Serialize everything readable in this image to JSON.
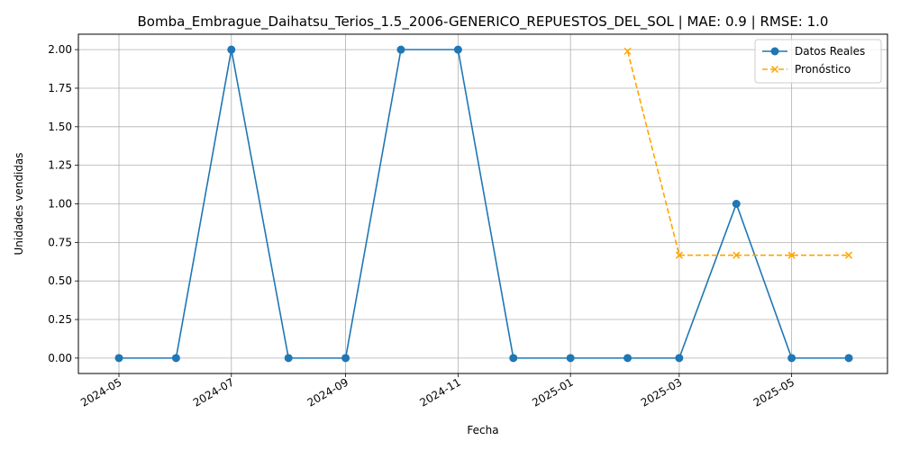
{
  "chart_data": {
    "type": "line",
    "title": "Bomba_Embrague_Daihatsu_Terios_1.5_2006-GENERICO_REPUESTOS_DEL_SOL | MAE: 0.9 | RMSE: 1.0",
    "xlabel": "Fecha",
    "ylabel": "Unidades vendidas",
    "ylim": [
      -0.1,
      2.1
    ],
    "xlim": [
      "2024-04-09",
      "2025-06-22"
    ],
    "x_ticks": [
      "2024-05",
      "2024-07",
      "2024-09",
      "2024-11",
      "2025-01",
      "2025-03",
      "2025-05"
    ],
    "y_ticks": [
      "0.00",
      "0.25",
      "0.50",
      "0.75",
      "1.00",
      "1.25",
      "1.50",
      "1.75",
      "2.00"
    ],
    "grid": true,
    "legend_position": "top-right",
    "series": [
      {
        "name": "Datos Reales",
        "color": "#1f77b4",
        "style": "solid",
        "marker": "circle",
        "x": [
          "2024-05-01",
          "2024-06-01",
          "2024-07-01",
          "2024-08-01",
          "2024-09-01",
          "2024-10-01",
          "2024-11-01",
          "2024-12-01",
          "2025-01-01",
          "2025-02-01",
          "2025-03-01",
          "2025-04-01",
          "2025-05-01",
          "2025-06-01"
        ],
        "values": [
          0,
          0,
          2,
          0,
          0,
          2,
          2,
          0,
          0,
          0,
          0,
          1,
          0,
          0
        ]
      },
      {
        "name": "Pronóstico",
        "color": "#ffa500",
        "style": "dashed",
        "marker": "x",
        "x": [
          "2025-02-01",
          "2025-03-01",
          "2025-04-01",
          "2025-05-01",
          "2025-06-01"
        ],
        "values": [
          1.99,
          0.667,
          0.667,
          0.667,
          0.667
        ]
      }
    ]
  }
}
